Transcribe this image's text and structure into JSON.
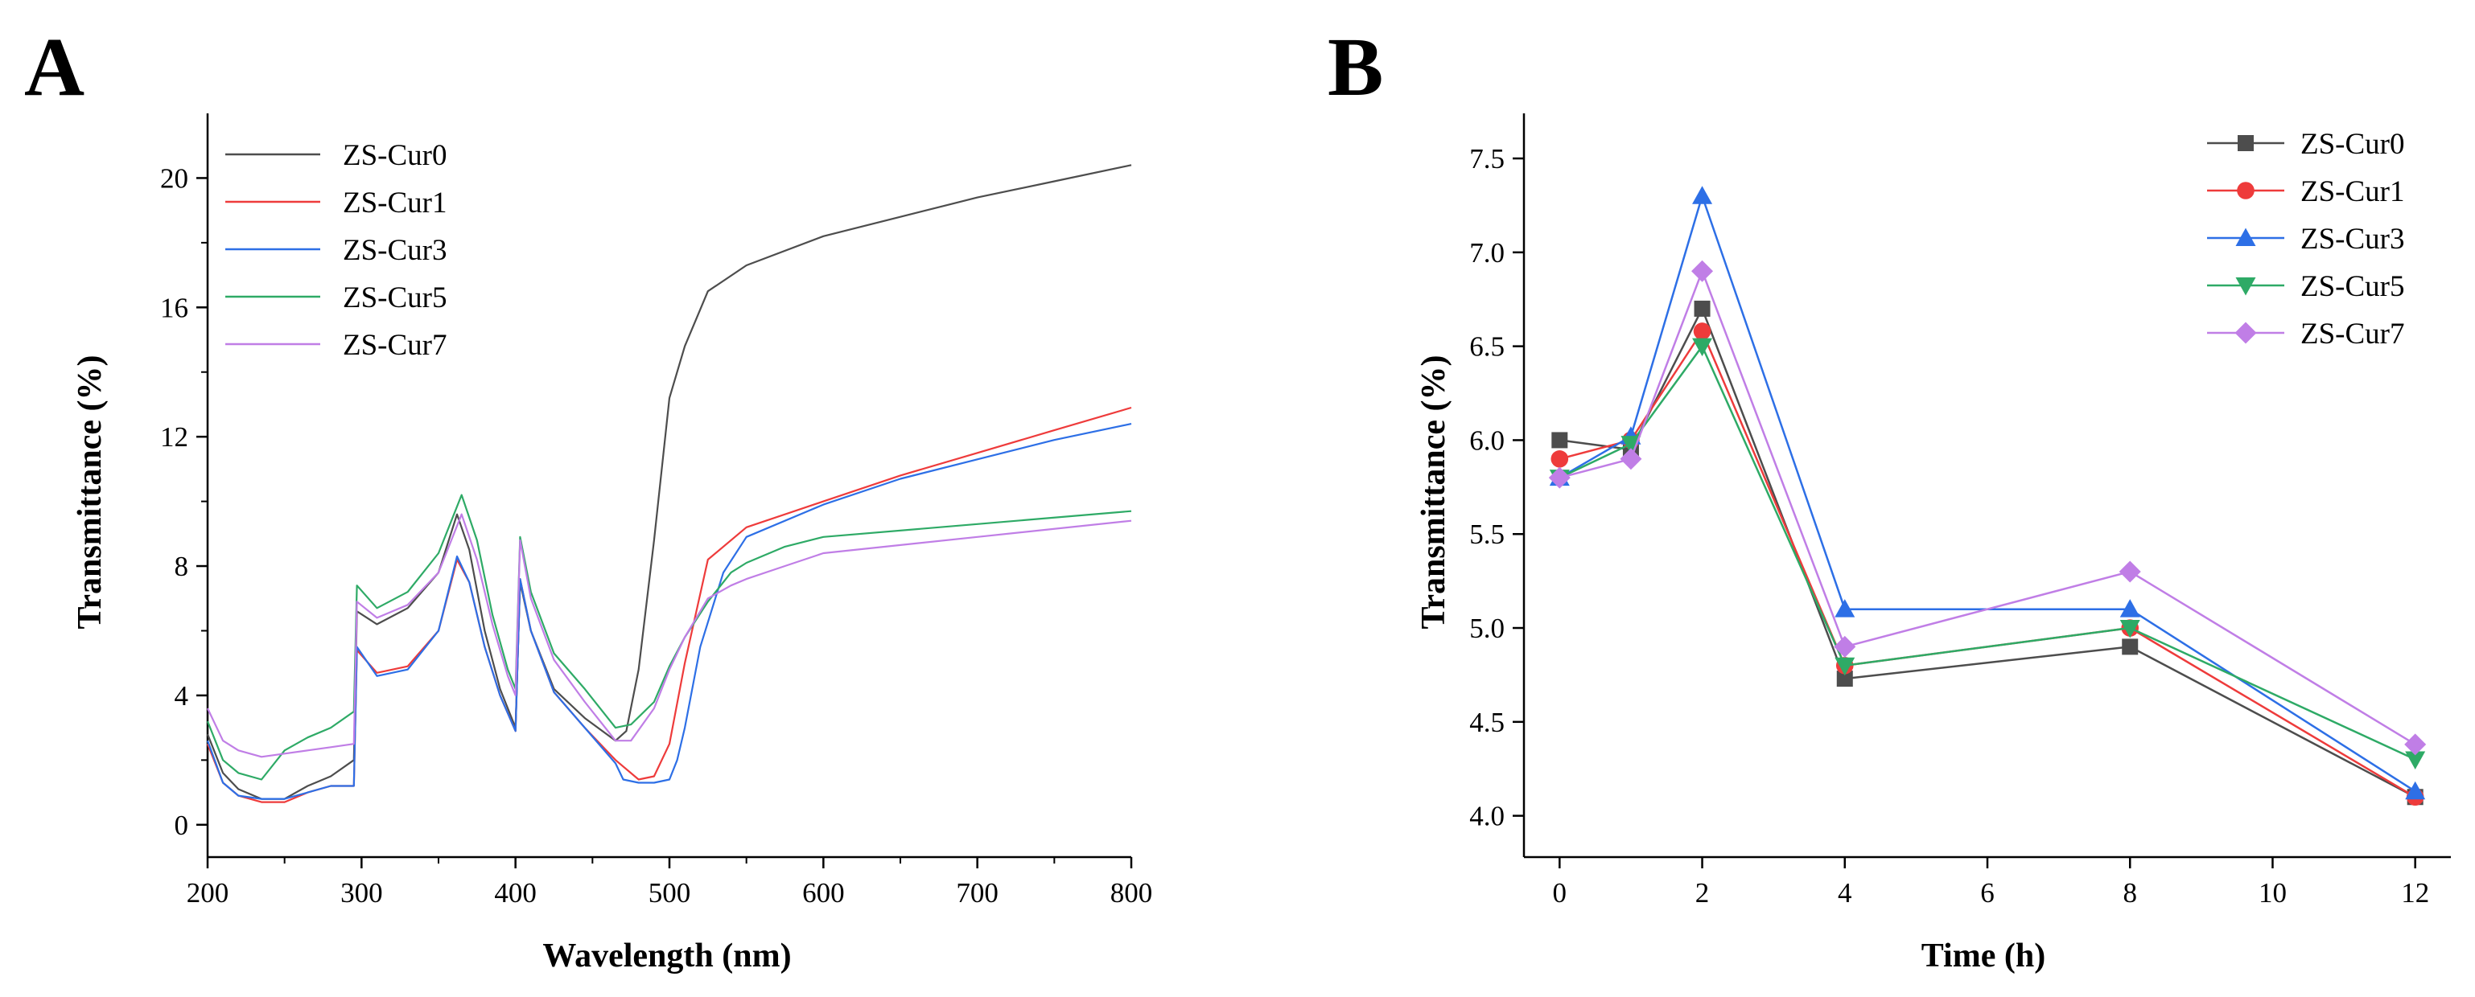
{
  "chart_data": [
    {
      "panel": "A",
      "type": "line",
      "xlabel": "Wavelength (nm)",
      "ylabel": "Transmittance (%)",
      "xlim": [
        200,
        800
      ],
      "ylim": [
        -1,
        22
      ],
      "xticks": [
        200,
        300,
        400,
        500,
        600,
        700,
        800
      ],
      "yticks": [
        0,
        4,
        8,
        12,
        16,
        20
      ],
      "grid": false,
      "legend_position": "top-left",
      "series": [
        {
          "name": "ZS-Cur0",
          "color": "#4d4d4d",
          "x": [
            200,
            210,
            220,
            235,
            250,
            265,
            280,
            295,
            297,
            310,
            330,
            350,
            362,
            370,
            380,
            390,
            400,
            403,
            410,
            425,
            445,
            465,
            472,
            480,
            490,
            500,
            510,
            525,
            550,
            600,
            650,
            700,
            750,
            800
          ],
          "y": [
            2.8,
            1.6,
            1.1,
            0.8,
            0.8,
            1.2,
            1.5,
            2.0,
            6.6,
            6.2,
            6.7,
            7.8,
            9.6,
            8.5,
            6.0,
            4.2,
            3.0,
            7.5,
            6.0,
            4.2,
            3.3,
            2.6,
            2.9,
            4.8,
            8.8,
            13.2,
            14.8,
            16.5,
            17.3,
            18.2,
            18.8,
            19.4,
            19.9,
            20.4
          ]
        },
        {
          "name": "ZS-Cur1",
          "color": "#ee3b3b",
          "x": [
            200,
            210,
            220,
            235,
            250,
            265,
            280,
            295,
            297,
            310,
            330,
            350,
            362,
            370,
            380,
            390,
            400,
            403,
            410,
            425,
            445,
            465,
            480,
            490,
            500,
            510,
            525,
            550,
            600,
            650,
            700,
            750,
            800
          ],
          "y": [
            2.5,
            1.3,
            0.9,
            0.7,
            0.7,
            1.0,
            1.2,
            1.2,
            5.4,
            4.7,
            4.9,
            6.0,
            8.2,
            7.5,
            5.5,
            4.0,
            2.9,
            7.6,
            6.0,
            4.1,
            3.0,
            2.0,
            1.4,
            1.5,
            2.5,
            5.0,
            8.2,
            9.2,
            10.0,
            10.8,
            11.5,
            12.2,
            12.9
          ]
        },
        {
          "name": "ZS-Cur3",
          "color": "#2d6fe6",
          "x": [
            200,
            210,
            220,
            235,
            250,
            265,
            280,
            295,
            297,
            310,
            330,
            350,
            362,
            370,
            380,
            390,
            400,
            403,
            410,
            425,
            445,
            465,
            470,
            480,
            490,
            500,
            505,
            510,
            520,
            535,
            550,
            600,
            650,
            700,
            750,
            800
          ],
          "y": [
            2.6,
            1.3,
            0.9,
            0.8,
            0.8,
            1.0,
            1.2,
            1.2,
            5.5,
            4.6,
            4.8,
            6.0,
            8.3,
            7.5,
            5.5,
            4.0,
            2.9,
            7.6,
            6.0,
            4.1,
            3.0,
            1.9,
            1.4,
            1.3,
            1.3,
            1.4,
            2.0,
            3.0,
            5.5,
            7.8,
            8.9,
            9.9,
            10.7,
            11.3,
            11.9,
            12.4
          ]
        },
        {
          "name": "ZS-Cur5",
          "color": "#2eaa66",
          "x": [
            200,
            210,
            220,
            235,
            250,
            265,
            280,
            295,
            297,
            310,
            330,
            350,
            365,
            375,
            385,
            395,
            400,
            403,
            410,
            425,
            445,
            465,
            475,
            490,
            500,
            510,
            525,
            540,
            550,
            575,
            600,
            700,
            800
          ],
          "y": [
            3.2,
            2.0,
            1.6,
            1.4,
            2.3,
            2.7,
            3.0,
            3.5,
            7.4,
            6.7,
            7.2,
            8.4,
            10.2,
            8.8,
            6.5,
            4.8,
            4.2,
            8.9,
            7.2,
            5.3,
            4.2,
            3.0,
            3.1,
            3.8,
            4.9,
            5.8,
            6.9,
            7.8,
            8.1,
            8.6,
            8.9,
            9.3,
            9.7
          ]
        },
        {
          "name": "ZS-Cur7",
          "color": "#c07ee6",
          "x": [
            200,
            210,
            220,
            235,
            250,
            265,
            280,
            295,
            297,
            310,
            330,
            350,
            365,
            375,
            385,
            395,
            400,
            403,
            410,
            425,
            445,
            465,
            475,
            490,
            500,
            510,
            525,
            540,
            550,
            575,
            600,
            700,
            800
          ],
          "y": [
            3.6,
            2.6,
            2.3,
            2.1,
            2.2,
            2.3,
            2.4,
            2.5,
            6.9,
            6.4,
            6.8,
            7.8,
            9.6,
            8.2,
            6.2,
            4.6,
            4.0,
            8.8,
            7.0,
            5.1,
            3.8,
            2.6,
            2.6,
            3.6,
            4.8,
            5.8,
            7.0,
            7.4,
            7.6,
            8.0,
            8.4,
            8.9,
            9.4
          ]
        }
      ]
    },
    {
      "panel": "B",
      "type": "line",
      "xlabel": "Time (h)",
      "ylabel": "Transmittance (%)",
      "xlim": [
        -0.5,
        12.5
      ],
      "ylim": [
        3.78,
        7.74
      ],
      "xticks": [
        0,
        2,
        4,
        6,
        8,
        10,
        12
      ],
      "yticks": [
        "4.0",
        "4.5",
        "5.0",
        "5.5",
        "6.0",
        "6.5",
        "7.0",
        "7.5"
      ],
      "grid": false,
      "legend_position": "top-right",
      "x": [
        0,
        1,
        2,
        4,
        8,
        12
      ],
      "series": [
        {
          "name": "ZS-Cur0",
          "color": "#4d4d4d",
          "marker": "square",
          "values": [
            6.0,
            5.95,
            6.7,
            4.73,
            4.9,
            4.1
          ]
        },
        {
          "name": "ZS-Cur1",
          "color": "#ee3b3b",
          "marker": "circle",
          "values": [
            5.9,
            6.0,
            6.58,
            4.8,
            5.0,
            4.1
          ]
        },
        {
          "name": "ZS-Cur3",
          "color": "#2d6fe6",
          "marker": "triangle-up",
          "values": [
            5.8,
            6.02,
            7.3,
            5.1,
            5.1,
            4.13
          ]
        },
        {
          "name": "ZS-Cur5",
          "color": "#2eaa66",
          "marker": "triangle-down",
          "values": [
            5.8,
            5.98,
            6.5,
            4.8,
            5.0,
            4.3
          ]
        },
        {
          "name": "ZS-Cur7",
          "color": "#c07ee6",
          "marker": "diamond",
          "values": [
            5.8,
            5.9,
            6.9,
            4.9,
            5.3,
            4.38
          ]
        }
      ]
    }
  ]
}
